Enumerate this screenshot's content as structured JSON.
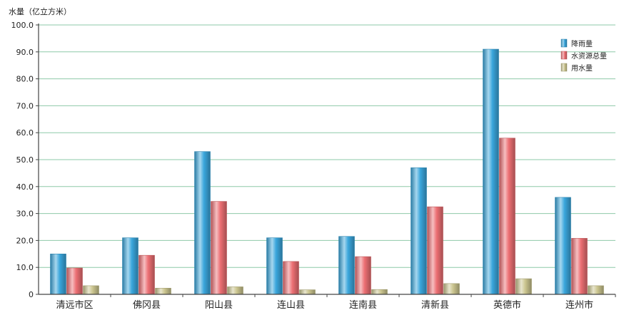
{
  "chart_data": {
    "type": "bar",
    "ylabel": "水量（亿立方米）",
    "ylim": [
      0,
      100
    ],
    "yticks": [
      "0",
      "10.0",
      "20.0",
      "30.0",
      "40.0",
      "50.0",
      "60.0",
      "70.0",
      "80.0",
      "90.0",
      "100.0"
    ],
    "grid": true,
    "legend_position": "top-right",
    "categories": [
      "清远市区",
      "佛冈县",
      "阳山县",
      "连山县",
      "连南县",
      "清新县",
      "英德市",
      "连州市"
    ],
    "series": [
      {
        "name": "降雨量",
        "color": "#3aa6dc",
        "values": [
          15.0,
          21.0,
          53.0,
          21.0,
          21.5,
          47.0,
          91.0,
          36.0
        ]
      },
      {
        "name": "水资源总量",
        "color": "#ec6f73",
        "values": [
          9.8,
          14.5,
          34.5,
          12.2,
          14.0,
          32.5,
          58.0,
          20.8
        ]
      },
      {
        "name": "用水量",
        "color": "#cbc58f",
        "values": [
          3.2,
          2.3,
          2.8,
          1.7,
          1.8,
          4.0,
          5.8,
          3.2
        ]
      }
    ]
  },
  "colors": {
    "grid": "#8ec9a8",
    "axis": "#444444"
  }
}
